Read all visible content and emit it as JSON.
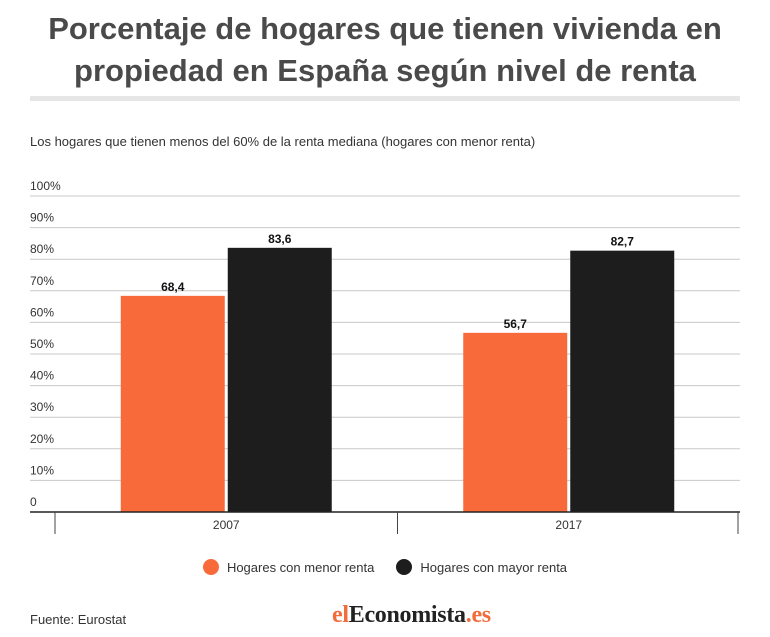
{
  "header": {
    "title_line1": "Porcentaje de hogares que tienen vivienda en",
    "title_line2": "propiedad en España según nivel de renta",
    "subtitle": "Los hogares que tienen menos del 60% de la renta mediana (hogares con menor renta)"
  },
  "chart_data": {
    "type": "bar",
    "categories": [
      "2007",
      "2017"
    ],
    "series": [
      {
        "name": "Hogares con menor renta",
        "values": [
          68.4,
          56.7
        ],
        "labels": [
          "68,4",
          "56,7"
        ],
        "color": "#f96a3b"
      },
      {
        "name": "Hogares con mayor renta",
        "values": [
          83.6,
          82.7
        ],
        "labels": [
          "83,6",
          "82,7"
        ],
        "color": "#1d1d1d"
      }
    ],
    "ylim": [
      0,
      100
    ],
    "yticks": [
      "0",
      "10%",
      "20%",
      "30%",
      "40%",
      "50%",
      "60%",
      "70%",
      "80%",
      "90%",
      "100%"
    ],
    "grid": true,
    "legend_position": "bottom-center"
  },
  "footer": {
    "source": "Fuente: Eurostat",
    "logo_part1": "el",
    "logo_part2": "Economista",
    "logo_part3": ".es"
  }
}
